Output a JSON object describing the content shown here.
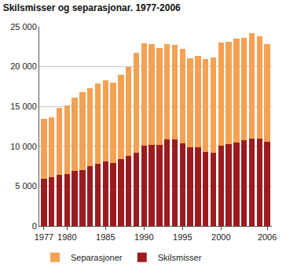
{
  "chart_data": {
    "type": "bar",
    "stacked": true,
    "grid": true,
    "legend": "bottom",
    "title": "Skilsmisser og separasjonar. 1977-2006",
    "categories": [
      "1977",
      null,
      null,
      "1980",
      null,
      null,
      null,
      null,
      "1985",
      null,
      null,
      null,
      null,
      "1990",
      null,
      null,
      null,
      null,
      "1995",
      null,
      null,
      null,
      null,
      "2000",
      null,
      null,
      null,
      null,
      null,
      "2006"
    ],
    "series": [
      {
        "name": "Skilsmisser",
        "color": "#9b1b1e",
        "values": [
          5900,
          6100,
          6400,
          6500,
          6900,
          7000,
          7500,
          7800,
          8100,
          7900,
          8400,
          8800,
          9200,
          10100,
          10200,
          10200,
          10900,
          10900,
          10400,
          9900,
          9900,
          9300,
          9200,
          10100,
          10300,
          10500,
          10800,
          11000,
          11000,
          10600
        ]
      },
      {
        "name": "Separasjoner",
        "color": "#f4a153",
        "values": [
          7500,
          7500,
          8400,
          8600,
          9200,
          9800,
          9800,
          10100,
          10200,
          10100,
          10600,
          11200,
          12500,
          12800,
          12600,
          12100,
          11900,
          11800,
          11800,
          11100,
          11400,
          11600,
          11900,
          12900,
          12800,
          13000,
          12800,
          13200,
          12800,
          12200
        ]
      }
    ],
    "ylim": [
      0,
      25000
    ],
    "yticks": [
      0,
      {
        "value": 5000,
        "label": "5 000"
      },
      {
        "value": 10000,
        "label": "10 000"
      },
      {
        "value": 15000,
        "label": "15 000"
      },
      {
        "value": 20000,
        "label": "20 000"
      },
      {
        "value": 25000,
        "label": "25 000"
      }
    ]
  }
}
